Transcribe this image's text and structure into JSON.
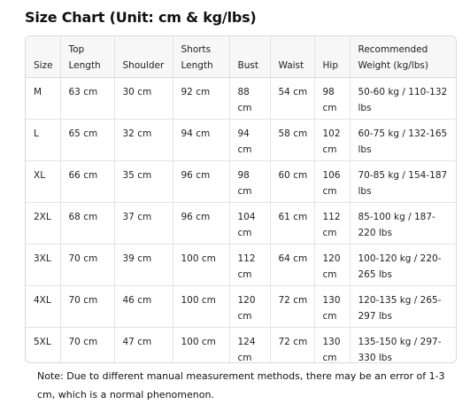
{
  "title": "Size Chart (Unit: cm & kg/lbs)",
  "table": {
    "headers": [
      "Size",
      "Top Length",
      "Shoulder",
      "Shorts Length",
      "Bust",
      "Waist",
      "Hip",
      "Recommended Weight (kg/lbs)"
    ],
    "rows": [
      [
        "M",
        "63 cm",
        "30 cm",
        "92 cm",
        "88 cm",
        "54 cm",
        "98 cm",
        "50-60 kg / 110-132 lbs"
      ],
      [
        "L",
        "65 cm",
        "32 cm",
        "94 cm",
        "94 cm",
        "58 cm",
        "102 cm",
        "60-75 kg / 132-165 lbs"
      ],
      [
        "XL",
        "66 cm",
        "35 cm",
        "96 cm",
        "98 cm",
        "60 cm",
        "106 cm",
        "70-85 kg / 154-187 lbs"
      ],
      [
        "2XL",
        "68 cm",
        "37 cm",
        "96 cm",
        "104 cm",
        "61 cm",
        "112 cm",
        "85-100 kg / 187-220 lbs"
      ],
      [
        "3XL",
        "70 cm",
        "39 cm",
        "100 cm",
        "112 cm",
        "64 cm",
        "120 cm",
        "100-120 kg / 220-265 lbs"
      ],
      [
        "4XL",
        "70 cm",
        "46 cm",
        "100 cm",
        "120 cm",
        "72 cm",
        "130 cm",
        "120-135 kg / 265-297 lbs"
      ],
      [
        "5XL",
        "70 cm",
        "47 cm",
        "100 cm",
        "124 cm",
        "72 cm",
        "130 cm",
        "135-150 kg / 297-330 lbs"
      ]
    ]
  },
  "note": "Note: Due to different manual measurement methods, there may be an error of 1-3 cm, which is a normal phenomenon."
}
